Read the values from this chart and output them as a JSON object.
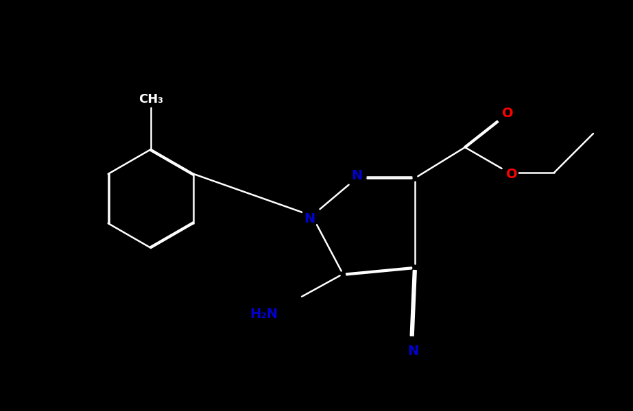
{
  "background_color": "#000000",
  "bond_color": "#ffffff",
  "N_color": "#0000cc",
  "O_color": "#ff0000",
  "lw": 1.8,
  "dbo": 0.018,
  "fs": 14,
  "fig_width": 9.23,
  "fig_height": 6.0,
  "dpi": 100,
  "xlim": [
    0,
    9.23
  ],
  "ylim": [
    0,
    6.0
  ]
}
